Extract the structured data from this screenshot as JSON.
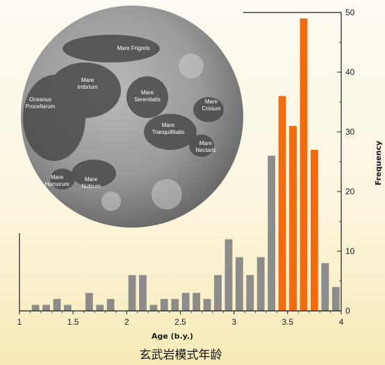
{
  "caption": "玄武岩模式年龄",
  "colors": {
    "gray": "#8c8c8c",
    "orange": "#f26b0f",
    "axis": "#1a1a1a"
  },
  "moon": {
    "labels": [
      {
        "id": "mare-frigoris",
        "lines": [
          "Mare Frigoris"
        ]
      },
      {
        "id": "mare-imbrium",
        "lines": [
          "Mare",
          "Imbrium"
        ]
      },
      {
        "id": "oceanus-procellarum",
        "lines": [
          "Oceanus",
          "Procellarum"
        ]
      },
      {
        "id": "mare-serenitatis",
        "lines": [
          "Mare",
          "Serenitatis"
        ]
      },
      {
        "id": "mare-crisium",
        "lines": [
          "Mare",
          "Crisium"
        ]
      },
      {
        "id": "mare-tranquillitatis",
        "lines": [
          "Mare",
          "Tranquillitatis"
        ]
      },
      {
        "id": "mare-nectaris",
        "lines": [
          "Mare",
          "Nectaris"
        ]
      },
      {
        "id": "mare-humorum",
        "lines": [
          "Mare",
          "Humorum"
        ]
      },
      {
        "id": "mare-nubium",
        "lines": [
          "Mare",
          "Nubium"
        ]
      }
    ]
  },
  "chart_data": {
    "type": "bar",
    "title": "",
    "xlabel": "Age (b.y.)",
    "ylabel": "Frequency",
    "xlim": [
      1,
      4
    ],
    "ylim": [
      0,
      50
    ],
    "xticks": [
      1,
      1.5,
      2,
      2.5,
      3,
      3.5,
      4
    ],
    "yticks": [
      0,
      10,
      20,
      30,
      40,
      50
    ],
    "yaxis_position": "right",
    "grid": false,
    "bin_width": 0.1,
    "series": [
      {
        "color": "gray",
        "bins": [
          {
            "x": 1.15,
            "y": 1
          },
          {
            "x": 1.25,
            "y": 1
          },
          {
            "x": 1.35,
            "y": 2
          },
          {
            "x": 1.45,
            "y": 1
          },
          {
            "x": 1.65,
            "y": 3
          },
          {
            "x": 1.75,
            "y": 1
          },
          {
            "x": 1.85,
            "y": 2
          },
          {
            "x": 2.05,
            "y": 6
          },
          {
            "x": 2.15,
            "y": 6
          },
          {
            "x": 2.25,
            "y": 1
          },
          {
            "x": 2.35,
            "y": 2
          },
          {
            "x": 2.45,
            "y": 2
          },
          {
            "x": 2.55,
            "y": 3
          },
          {
            "x": 2.65,
            "y": 3
          },
          {
            "x": 2.75,
            "y": 2
          },
          {
            "x": 2.85,
            "y": 6
          },
          {
            "x": 2.95,
            "y": 12
          },
          {
            "x": 3.05,
            "y": 9
          },
          {
            "x": 3.15,
            "y": 6
          },
          {
            "x": 3.25,
            "y": 9
          },
          {
            "x": 3.35,
            "y": 26
          },
          {
            "x": 3.85,
            "y": 8
          },
          {
            "x": 3.95,
            "y": 4
          }
        ]
      },
      {
        "color": "orange",
        "bins": [
          {
            "x": 3.45,
            "y": 36
          },
          {
            "x": 3.55,
            "y": 31
          },
          {
            "x": 3.65,
            "y": 49
          },
          {
            "x": 3.75,
            "y": 27
          }
        ]
      }
    ]
  }
}
